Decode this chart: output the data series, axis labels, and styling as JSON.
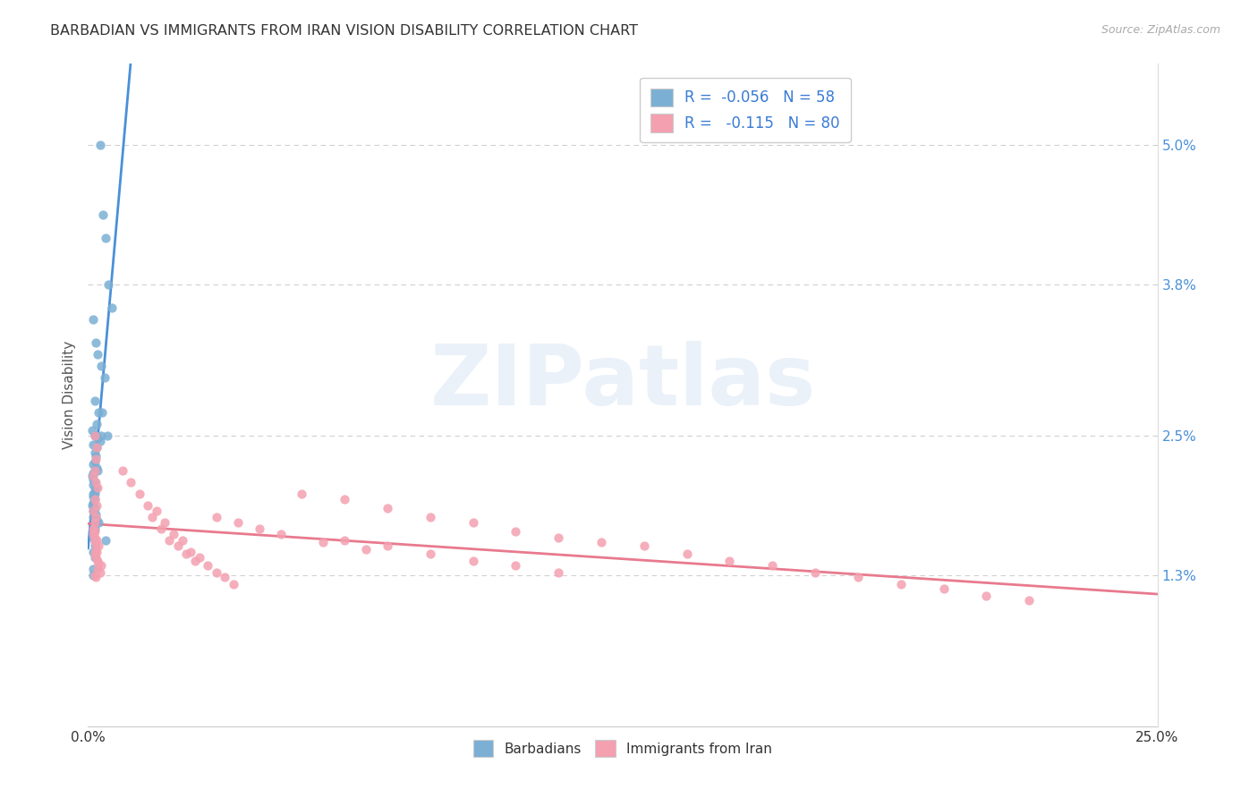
{
  "title": "BARBADIAN VS IMMIGRANTS FROM IRAN VISION DISABILITY CORRELATION CHART",
  "source": "Source: ZipAtlas.com",
  "ylabel": "Vision Disability",
  "ytick_labels": [
    "1.3%",
    "2.5%",
    "3.8%",
    "5.0%"
  ],
  "ytick_values": [
    0.013,
    0.025,
    0.038,
    0.05
  ],
  "xlim": [
    0.0,
    0.25
  ],
  "ylim": [
    0.0,
    0.057
  ],
  "legend_entry1": "R =  -0.056   N = 58",
  "legend_entry2": "R =   -0.115   N = 80",
  "barbadian_color": "#7bafd4",
  "iran_color": "#f4a0b0",
  "barbadian_line_color": "#4a90d9",
  "iran_line_color": "#e87a8e",
  "dashed_line_color": "#90bce8",
  "watermark": "ZIPatlas",
  "barbadian_x": [
    0.0028,
    0.0035,
    0.0042,
    0.0048,
    0.0055,
    0.0012,
    0.0018,
    0.0022,
    0.003,
    0.0038,
    0.0015,
    0.0025,
    0.0032,
    0.002,
    0.001,
    0.0045,
    0.0015,
    0.0018,
    0.0022,
    0.0028,
    0.0012,
    0.002,
    0.0015,
    0.0018,
    0.0015,
    0.0012,
    0.002,
    0.0015,
    0.0012,
    0.001,
    0.0012,
    0.0015,
    0.0012,
    0.0018,
    0.0015,
    0.0012,
    0.0012,
    0.0015,
    0.0012,
    0.001,
    0.0015,
    0.0012,
    0.0018,
    0.0012,
    0.002,
    0.0025,
    0.0015,
    0.0012,
    0.0012,
    0.004,
    0.0015,
    0.0012,
    0.0015,
    0.0012,
    0.0012,
    0.003,
    0.0022,
    0.0015
  ],
  "barbadian_y": [
    0.05,
    0.044,
    0.042,
    0.038,
    0.036,
    0.035,
    0.033,
    0.032,
    0.031,
    0.03,
    0.028,
    0.027,
    0.027,
    0.026,
    0.0255,
    0.025,
    0.025,
    0.025,
    0.0248,
    0.0245,
    0.0242,
    0.024,
    0.0235,
    0.0232,
    0.0228,
    0.0225,
    0.0222,
    0.022,
    0.0218,
    0.0215,
    0.0212,
    0.021,
    0.0208,
    0.0205,
    0.0202,
    0.02,
    0.0198,
    0.0195,
    0.0192,
    0.019,
    0.0188,
    0.0185,
    0.0182,
    0.018,
    0.0178,
    0.0175,
    0.017,
    0.0168,
    0.0162,
    0.016,
    0.0155,
    0.015,
    0.0145,
    0.0135,
    0.013,
    0.025,
    0.022,
    0.02
  ],
  "iran_x": [
    0.0015,
    0.002,
    0.0018,
    0.0015,
    0.0012,
    0.0018,
    0.0022,
    0.0015,
    0.002,
    0.0012,
    0.0018,
    0.0015,
    0.0012,
    0.0015,
    0.0012,
    0.0015,
    0.002,
    0.0015,
    0.0025,
    0.0018,
    0.002,
    0.0015,
    0.0018,
    0.0022,
    0.0025,
    0.003,
    0.0022,
    0.0028,
    0.0015,
    0.0018,
    0.008,
    0.01,
    0.012,
    0.014,
    0.016,
    0.018,
    0.02,
    0.015,
    0.017,
    0.019,
    0.021,
    0.023,
    0.025,
    0.022,
    0.024,
    0.026,
    0.028,
    0.03,
    0.032,
    0.034,
    0.05,
    0.06,
    0.07,
    0.08,
    0.09,
    0.1,
    0.11,
    0.12,
    0.13,
    0.14,
    0.15,
    0.16,
    0.17,
    0.18,
    0.19,
    0.2,
    0.21,
    0.22,
    0.06,
    0.07,
    0.08,
    0.09,
    0.1,
    0.11,
    0.04,
    0.045,
    0.055,
    0.065,
    0.035,
    0.03
  ],
  "iran_y": [
    0.025,
    0.024,
    0.023,
    0.022,
    0.0215,
    0.021,
    0.0205,
    0.0195,
    0.019,
    0.0185,
    0.018,
    0.0175,
    0.017,
    0.0168,
    0.0165,
    0.0162,
    0.016,
    0.0158,
    0.0155,
    0.0152,
    0.015,
    0.0148,
    0.0145,
    0.0142,
    0.014,
    0.0138,
    0.0135,
    0.0132,
    0.013,
    0.0128,
    0.022,
    0.021,
    0.02,
    0.019,
    0.0185,
    0.0175,
    0.0165,
    0.018,
    0.017,
    0.016,
    0.0155,
    0.0148,
    0.0142,
    0.016,
    0.015,
    0.0145,
    0.0138,
    0.0132,
    0.0128,
    0.0122,
    0.02,
    0.0195,
    0.0188,
    0.018,
    0.0175,
    0.0168,
    0.0162,
    0.0158,
    0.0155,
    0.0148,
    0.0142,
    0.0138,
    0.0132,
    0.0128,
    0.0122,
    0.0118,
    0.0112,
    0.0108,
    0.016,
    0.0155,
    0.0148,
    0.0142,
    0.0138,
    0.0132,
    0.017,
    0.0165,
    0.0158,
    0.0152,
    0.0175,
    0.018
  ]
}
